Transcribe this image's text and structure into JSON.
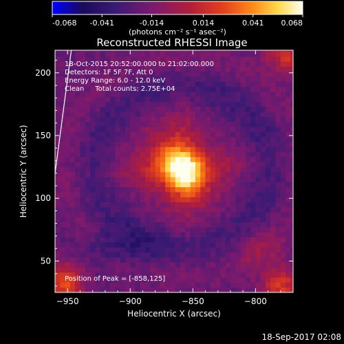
{
  "colorbar": {
    "ticks": [
      "-0.068",
      "-0.041",
      "-0.014",
      "0.014",
      "0.041",
      "0.068"
    ],
    "units_label": "(photons cm⁻² s⁻¹ asec⁻²)",
    "range": [
      -0.068,
      0.068
    ]
  },
  "plot": {
    "title": "Reconstructed RHESSI Image",
    "info_lines": [
      "18-Oct-2015 20:52:00.000 to 21:02:00.000",
      "Detectors: 1F 5F 7F, Att 0",
      "Energy Range: 6.0 - 12.0 keV",
      "Clean     Total counts: 2.75E+04"
    ],
    "peak_label": "Position of Peak = [-858,125]"
  },
  "footer": {
    "timestamp": "18-Sep-2017 02:08"
  },
  "chart_data": {
    "type": "heatmap",
    "title": "Reconstructed RHESSI Image",
    "xlabel": "Heliocentric X (arcsec)",
    "ylabel": "Heliocentric Y (arcsec)",
    "xlim": [
      -960,
      -770
    ],
    "ylim": [
      25,
      218
    ],
    "x_ticks": [
      -950,
      -900,
      -850,
      -800
    ],
    "y_ticks": [
      50,
      100,
      150,
      200
    ],
    "colorscale": [
      "#0000ff",
      "#1a0a5a",
      "#3a1a74",
      "#7a1a6e",
      "#b01e3c",
      "#e2401a",
      "#ff8a1a",
      "#ffd84a",
      "#fffff0"
    ],
    "peak": {
      "x": -858,
      "y": 125
    },
    "limb": [
      [
        -960,
        120
      ],
      [
        -947,
        218
      ]
    ],
    "components": [
      {
        "x": -858,
        "y": 122,
        "amp": 0.052,
        "sx": 15,
        "sy": 10,
        "rot": -50
      },
      {
        "x": -862,
        "y": 126,
        "amp": 0.03,
        "sx": 27,
        "sy": 22,
        "rot": -45
      },
      {
        "x": -858,
        "y": 124,
        "amp": 0.015,
        "sx": 46,
        "sy": 8,
        "rot": 5
      },
      {
        "x": -858,
        "y": 124,
        "amp": 0.012,
        "sx": 8,
        "sy": 44,
        "rot": 0
      },
      {
        "x": -952,
        "y": 32,
        "amp": 0.045,
        "sx": 10,
        "sy": 12,
        "rot": 0
      },
      {
        "x": -780,
        "y": 30,
        "amp": 0.04,
        "sx": 10,
        "sy": 10,
        "rot": 0
      },
      {
        "x": -775,
        "y": 212,
        "amp": 0.035,
        "sx": 12,
        "sy": 8,
        "rot": 0
      },
      {
        "x": -797,
        "y": 60,
        "amp": 0.014,
        "sx": 14,
        "sy": 12,
        "rot": 0
      },
      {
        "x": -910,
        "y": 60,
        "amp": -0.015,
        "sx": 25,
        "sy": 10,
        "rot": 0
      }
    ]
  }
}
